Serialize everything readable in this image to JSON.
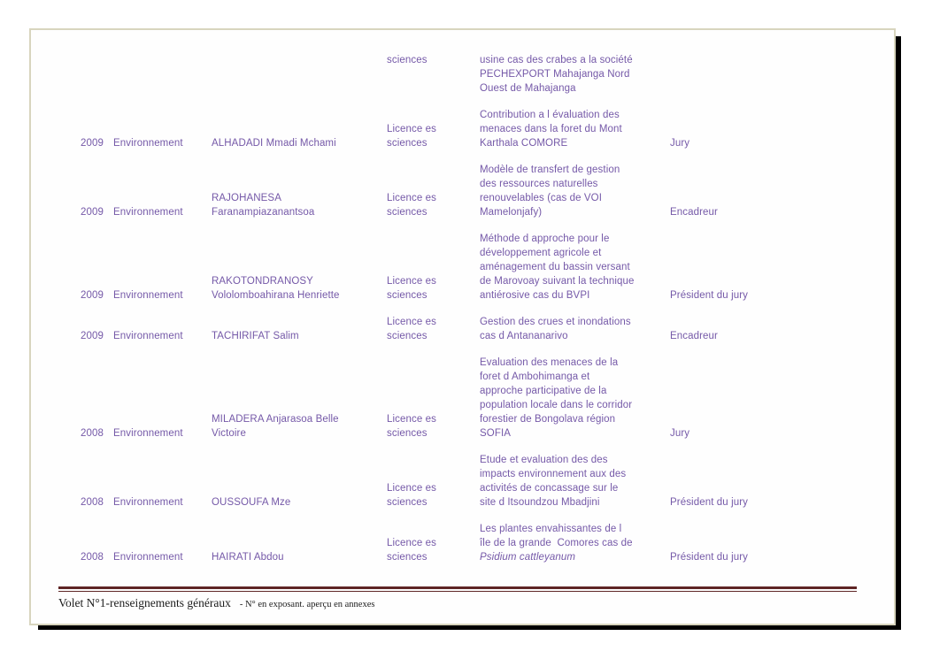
{
  "document": {
    "text_color": "#7559a8",
    "footer": {
      "rule_color": "#5e2525",
      "title": "Volet N°1-renseignements généraux",
      "note": "- N° en exposant. aperçu en annexes"
    },
    "columns": [
      "year",
      "domain",
      "name",
      "degree",
      "title",
      "role"
    ],
    "rows": [
      {
        "align": "top",
        "year": "",
        "domain": "",
        "name_lines": [],
        "degree_lines": [
          "sciences"
        ],
        "title_lines": [
          {
            "text": "usine cas des crabes a la société",
            "italic": false
          },
          {
            "text": "PECHEXPORT Mahajanga Nord",
            "italic": false
          },
          {
            "text": "Ouest de Mahajanga",
            "italic": false
          }
        ],
        "role": ""
      },
      {
        "align": "bottom",
        "year": "2009",
        "domain": "Environnement",
        "name_lines": [
          "ALHADADI Mmadi Mchami"
        ],
        "degree_lines": [
          "Licence es",
          "sciences"
        ],
        "title_lines": [
          {
            "text": "Contribution a l évaluation des",
            "italic": false
          },
          {
            "text": "menaces dans la foret du Mont",
            "italic": false
          },
          {
            "text": "Karthala COMORE",
            "italic": false
          }
        ],
        "role": "Jury"
      },
      {
        "align": "bottom",
        "year": "2009",
        "domain": "Environnement",
        "name_lines": [
          "RAJOHANESA",
          "Faranampiazanantsoa"
        ],
        "degree_lines": [
          "Licence es",
          "sciences"
        ],
        "title_lines": [
          {
            "text": "Modèle de transfert de gestion",
            "italic": false
          },
          {
            "text": "des ressources naturelles",
            "italic": false
          },
          {
            "text": "renouvelables (cas de VOI",
            "italic": false
          },
          {
            "text": "Mamelonjafy)",
            "italic": false
          }
        ],
        "role": "Encadreur"
      },
      {
        "align": "bottom",
        "year": "2009",
        "domain": "Environnement",
        "name_lines": [
          "RAKOTONDRANOSY",
          "Vololomboahirana Henriette"
        ],
        "degree_lines": [
          "Licence es",
          "sciences"
        ],
        "title_lines": [
          {
            "text": "Méthode d approche pour le",
            "italic": false
          },
          {
            "text": "développement agricole et",
            "italic": false
          },
          {
            "text": "aménagement du bassin versant",
            "italic": false
          },
          {
            "text": "de Marovoay suivant la technique",
            "italic": false
          },
          {
            "text": "antiérosive cas du BVPI",
            "italic": false
          }
        ],
        "role": "Président du jury"
      },
      {
        "align": "bottom",
        "year": "2009",
        "domain": "Environnement",
        "name_lines": [
          "TACHIRIFAT Salim"
        ],
        "degree_lines": [
          "Licence es",
          "sciences"
        ],
        "title_lines": [
          {
            "text": "Gestion des crues et inondations",
            "italic": false
          },
          {
            "text": "cas d Antananarivo",
            "italic": false
          }
        ],
        "role": "Encadreur"
      },
      {
        "align": "bottom",
        "year": "2008",
        "domain": "Environnement",
        "name_lines": [
          "MILADERA Anjarasoa Belle",
          "Victoire"
        ],
        "degree_lines": [
          "Licence es",
          "sciences"
        ],
        "title_lines": [
          {
            "text": "Evaluation des menaces de la",
            "italic": false
          },
          {
            "text": "foret d Ambohimanga et",
            "italic": false
          },
          {
            "text": "approche participative de la",
            "italic": false
          },
          {
            "text": "population locale dans le corridor",
            "italic": false
          },
          {
            "text": "forestier de Bongolava région",
            "italic": false
          },
          {
            "text": "SOFIA",
            "italic": false
          }
        ],
        "role": "Jury"
      },
      {
        "align": "bottom",
        "year": "2008",
        "domain": "Environnement",
        "name_lines": [
          "OUSSOUFA Mze"
        ],
        "degree_lines": [
          "Licence es",
          "sciences"
        ],
        "title_lines": [
          {
            "text": "Etude et evaluation des des",
            "italic": false
          },
          {
            "text": "impacts environnement aux des",
            "italic": false
          },
          {
            "text": "activités de concassage sur le",
            "italic": false
          },
          {
            "text": "site d Itsoundzou Mbadjini",
            "italic": false
          }
        ],
        "role": "Président du jury"
      },
      {
        "align": "bottom",
        "year": "2008",
        "domain": "Environnement",
        "name_lines": [
          "HAIRATI Abdou"
        ],
        "degree_lines": [
          "Licence es",
          "sciences"
        ],
        "title_lines": [
          {
            "text": "Les plantes envahissantes de l",
            "italic": false
          },
          {
            "text": "île de la grande  Comores cas de",
            "italic": false
          },
          {
            "text": "Psidium cattleyanum",
            "italic": true
          }
        ],
        "role": "Président du jury"
      }
    ]
  }
}
